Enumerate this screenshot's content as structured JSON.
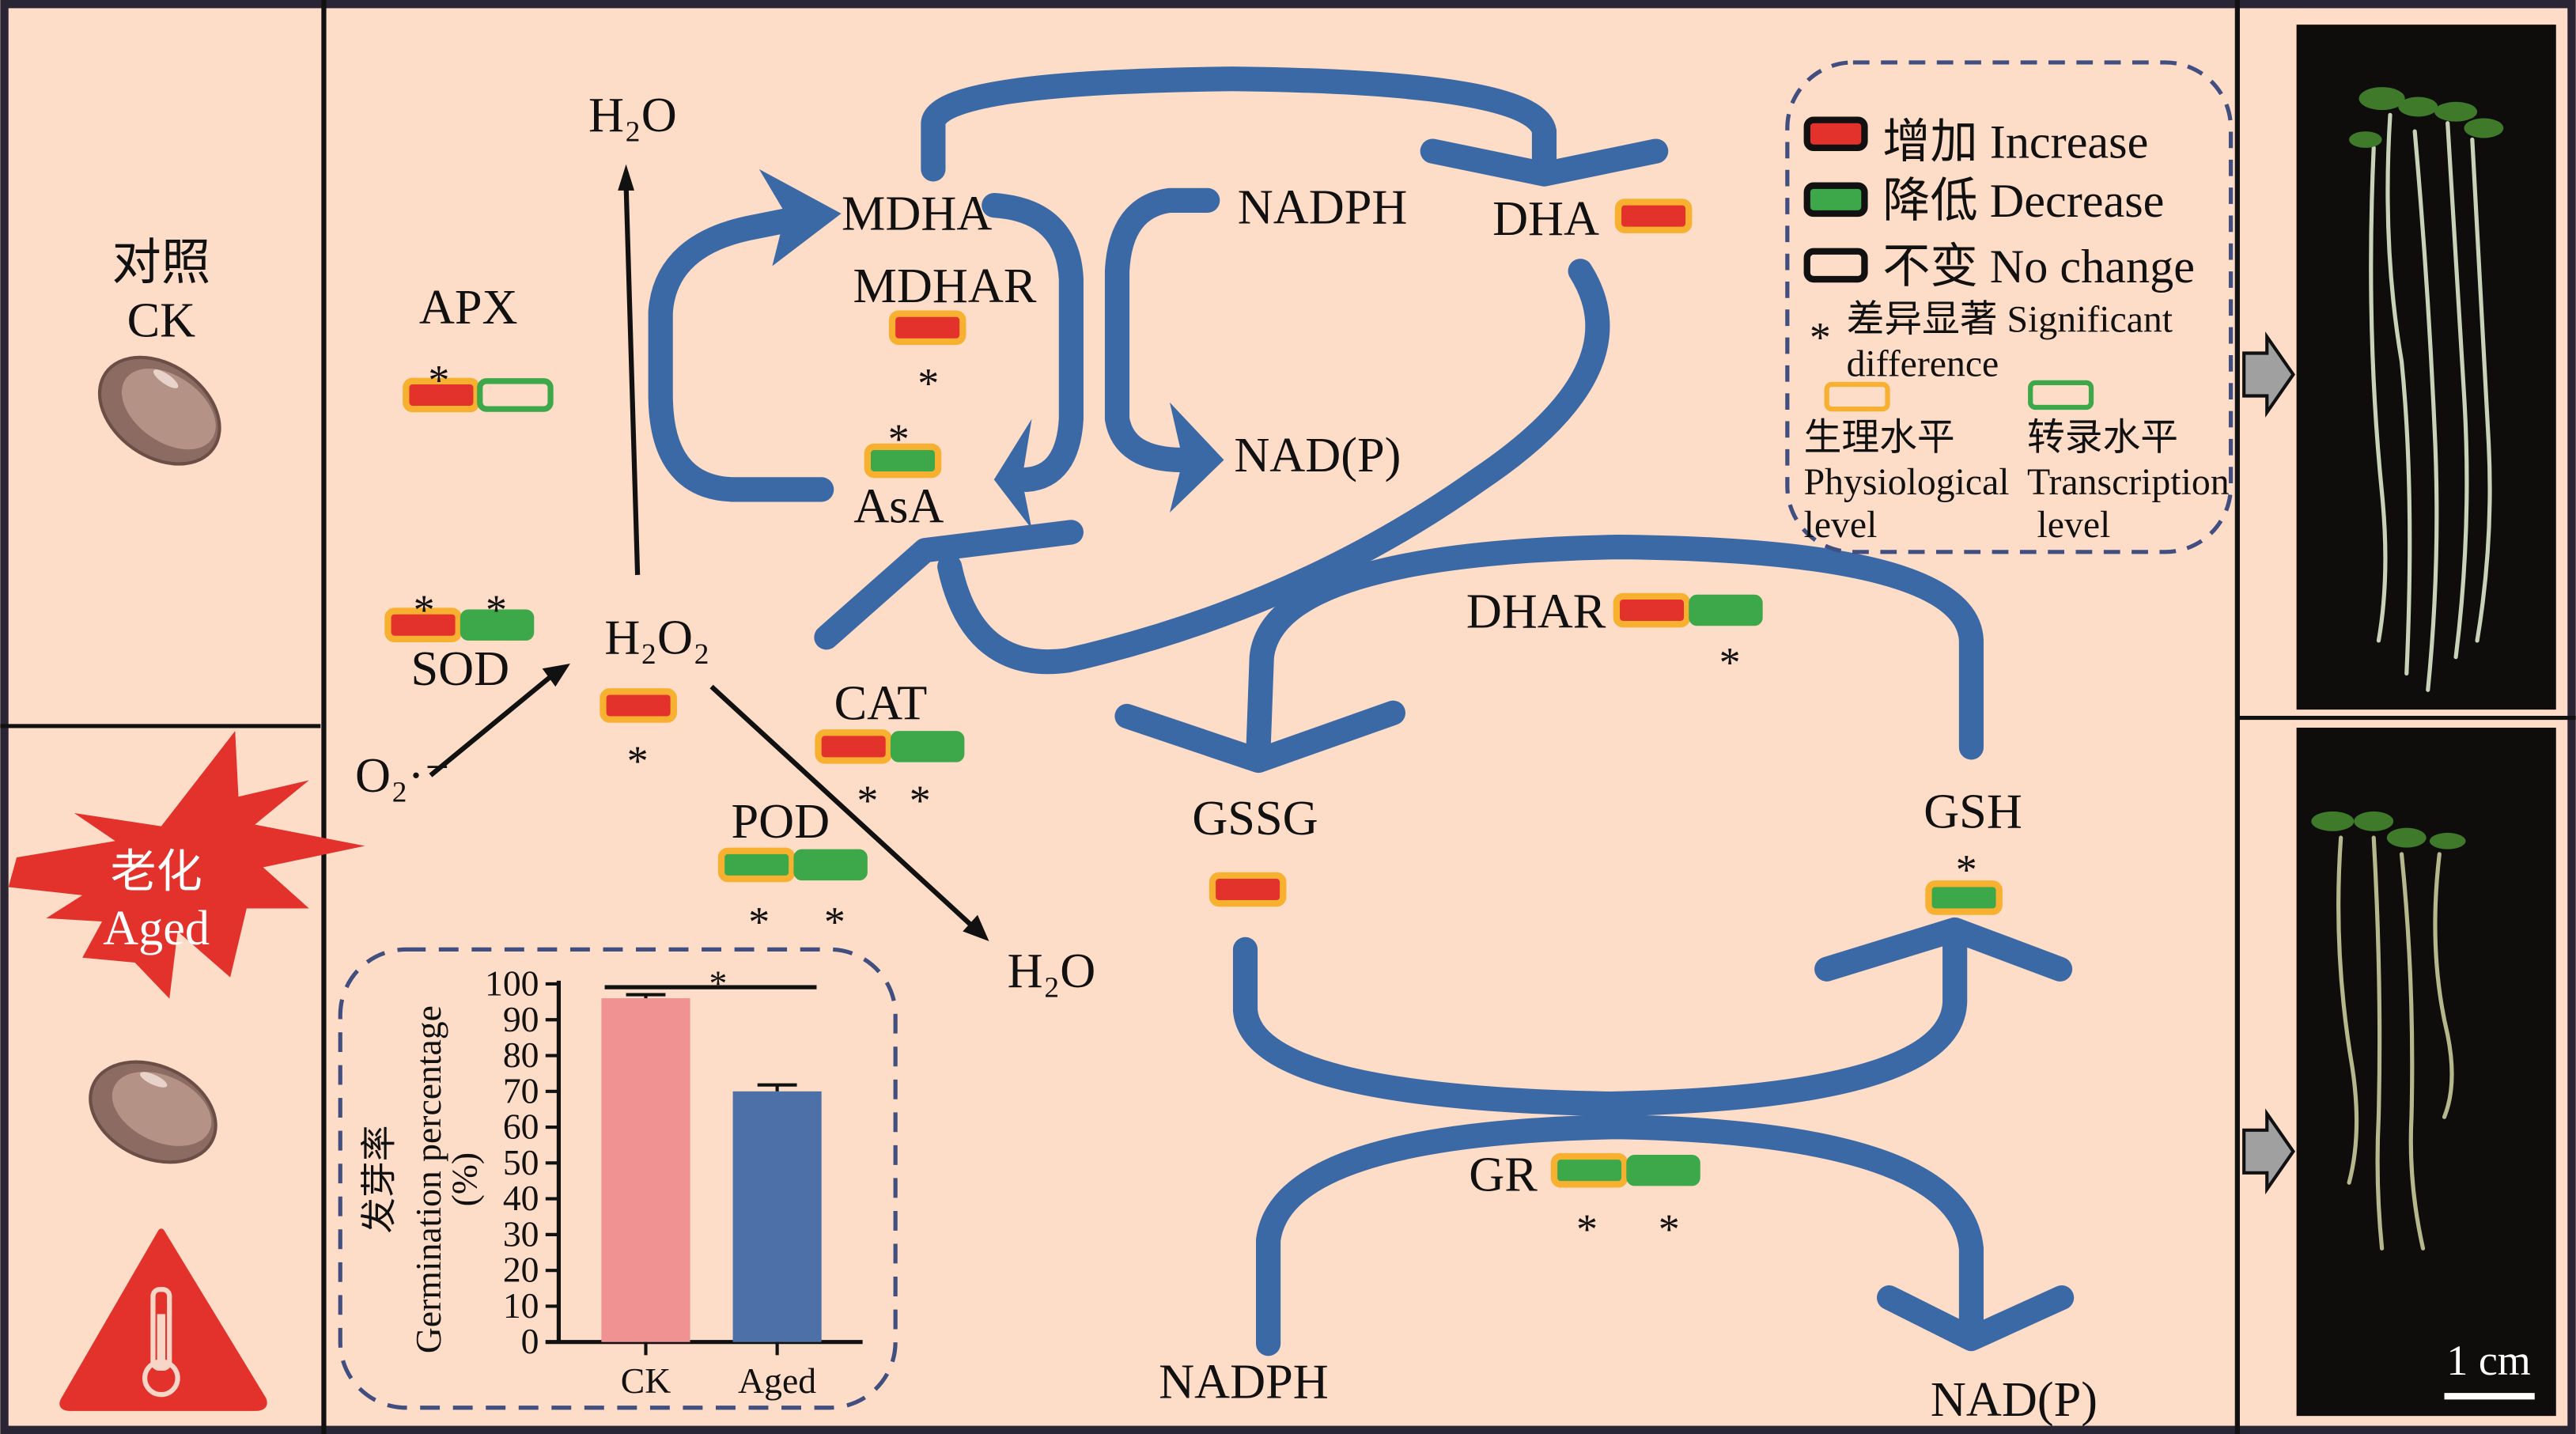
{
  "colors": {
    "background": "#fddcc8",
    "pathway_arrow": "#3a69a6",
    "increase": "#e3312b",
    "decrease": "#3da849",
    "physiological_border": "#f7b030",
    "transcription_border": "#3da849",
    "chart_ck": "#f09292",
    "chart_aged": "#4e70a8",
    "legend_border": "#404e80"
  },
  "sig_mark": "*",
  "left_panel": {
    "control_cn": "对照",
    "control_en": "CK",
    "aged_cn": "老化",
    "aged_en": "Aged",
    "icons": [
      "seed-icon",
      "explosion-badge",
      "seed-icon",
      "high-temperature-warning-icon"
    ]
  },
  "pathway": {
    "h2o_top": "H₂O",
    "h2o_bottom": "H₂O",
    "h2o2": "H₂O₂",
    "superoxide": "O₂·⁻",
    "mdha": "MDHA",
    "mdhar": "MDHAR",
    "asa": "AsA",
    "nadph_top": "NADPH",
    "nadp_top": "NAD(P)",
    "dha": "DHA",
    "dhar": "DHAR",
    "gssg": "GSSG",
    "gsh": "GSH",
    "gr": "GR",
    "nadph_bottom": "NADPH",
    "nadp_bottom": "NAD(P)",
    "apx": "APX",
    "sod": "SOD",
    "cat": "CAT",
    "pod": "POD"
  },
  "badges": {
    "APX": {
      "physiological": "increase",
      "transcription": "no_change"
    },
    "SOD": {
      "physiological": "increase",
      "transcription": "decrease"
    },
    "H2O2": {
      "physiological": "increase"
    },
    "MDHAR": {
      "physiological": "increase"
    },
    "AsA": {
      "physiological": "decrease"
    },
    "DHA": {
      "physiological": "increase"
    },
    "CAT": {
      "physiological": "increase",
      "transcription": "decrease"
    },
    "POD": {
      "physiological": "decrease",
      "transcription": "decrease"
    },
    "DHAR": {
      "physiological": "increase",
      "transcription": "decrease"
    },
    "GSSG": {
      "physiological": "increase"
    },
    "GSH": {
      "physiological": "decrease"
    },
    "GR": {
      "physiological": "decrease",
      "transcription": "decrease"
    }
  },
  "legend": {
    "increase": "增加 Increase",
    "decrease": "降低 Decrease",
    "no_change": "不变 No change",
    "significant_line1": "差异显著 Significant",
    "significant_line2": "difference",
    "physiological_cn": "生理水平",
    "physiological_en1": "Physiological",
    "physiological_en2": "level",
    "transcription_cn": "转录水平",
    "transcription_en1": "Transcription",
    "transcription_en2": "level"
  },
  "photos": {
    "scale_bar": "1 cm"
  },
  "chart_data": {
    "type": "bar",
    "categories": [
      "CK",
      "Aged"
    ],
    "values": [
      96,
      70
    ],
    "errors": [
      1,
      1.8
    ],
    "ylabel_cn": "发芽率",
    "ylabel_en": "Germination percentage",
    "ylabel_unit": "(%)",
    "ylim": [
      0,
      100
    ],
    "yticks": [
      "0",
      "10",
      "20",
      "30",
      "40",
      "50",
      "60",
      "70",
      "80",
      "90",
      "100"
    ],
    "significance": "*",
    "grid": false
  }
}
